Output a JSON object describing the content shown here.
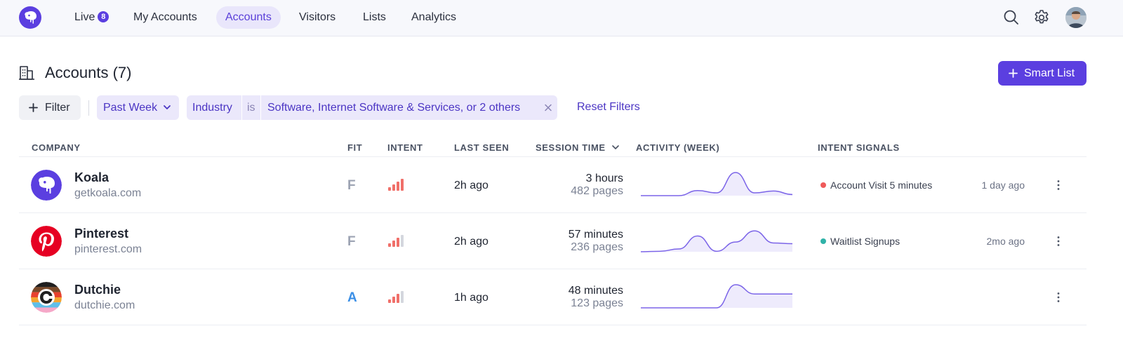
{
  "nav": {
    "items": [
      {
        "label": "Live",
        "badge": "8"
      },
      {
        "label": "My Accounts"
      },
      {
        "label": "Accounts",
        "active": true
      },
      {
        "label": "Visitors"
      },
      {
        "label": "Lists"
      },
      {
        "label": "Analytics"
      }
    ],
    "icons": [
      "search-icon",
      "gear-icon"
    ]
  },
  "header": {
    "title": "Accounts (7)",
    "smart_list_label": "Smart List"
  },
  "filters": {
    "filter_label": "Filter",
    "period": "Past Week",
    "chip": {
      "field": "Industry",
      "operator": "is",
      "value": "Software, Internet Software & Services, or 2 others"
    },
    "reset_label": "Reset Filters"
  },
  "table": {
    "columns": [
      "COMPANY",
      "FIT",
      "INTENT",
      "LAST SEEN",
      "SESSION TIME",
      "ACTIVITY (WEEK)",
      "INTENT SIGNALS"
    ],
    "rows": [
      {
        "name": "Koala",
        "domain": "getkoala.com",
        "fit": "F",
        "intent_level": 4,
        "last_seen": "2h ago",
        "session_time": "3 hours",
        "pages": "482 pages",
        "activity": [
          0,
          0,
          0,
          0.22,
          0.12,
          1.0,
          0.12,
          0.2,
          0.05
        ],
        "signal": "Account Visit 5 minutes",
        "signal_time": "1 day ago",
        "signal_color": "#ef5a5a"
      },
      {
        "name": "Pinterest",
        "domain": "pinterest.com",
        "fit": "F",
        "intent_level": 3,
        "last_seen": "2h ago",
        "session_time": "57 minutes",
        "pages": "236 pages",
        "activity": [
          0,
          0.02,
          0.12,
          0.68,
          0.02,
          0.42,
          0.9,
          0.38,
          0.35
        ],
        "signal": "Waitlist Signups",
        "signal_time": "2mo ago",
        "signal_color": "#2fb2a8"
      },
      {
        "name": "Dutchie",
        "domain": "dutchie.com",
        "fit": "A",
        "intent_level": 3,
        "last_seen": "1h ago",
        "session_time": "48 minutes",
        "pages": "123 pages",
        "activity": [
          0,
          0,
          0,
          0,
          0,
          1.0,
          0.6,
          0.6,
          0.6
        ],
        "signal": "",
        "signal_time": "",
        "signal_color": ""
      }
    ]
  },
  "colors": {
    "accent": "#5b3fe0",
    "fit_f": "#9ca3b3",
    "fit_a": "#3b8fe6",
    "intent_on": "#f0706a",
    "intent_off": "#d4d7de",
    "spark_line": "#7b64e8",
    "spark_fill": "#eeebfc"
  }
}
